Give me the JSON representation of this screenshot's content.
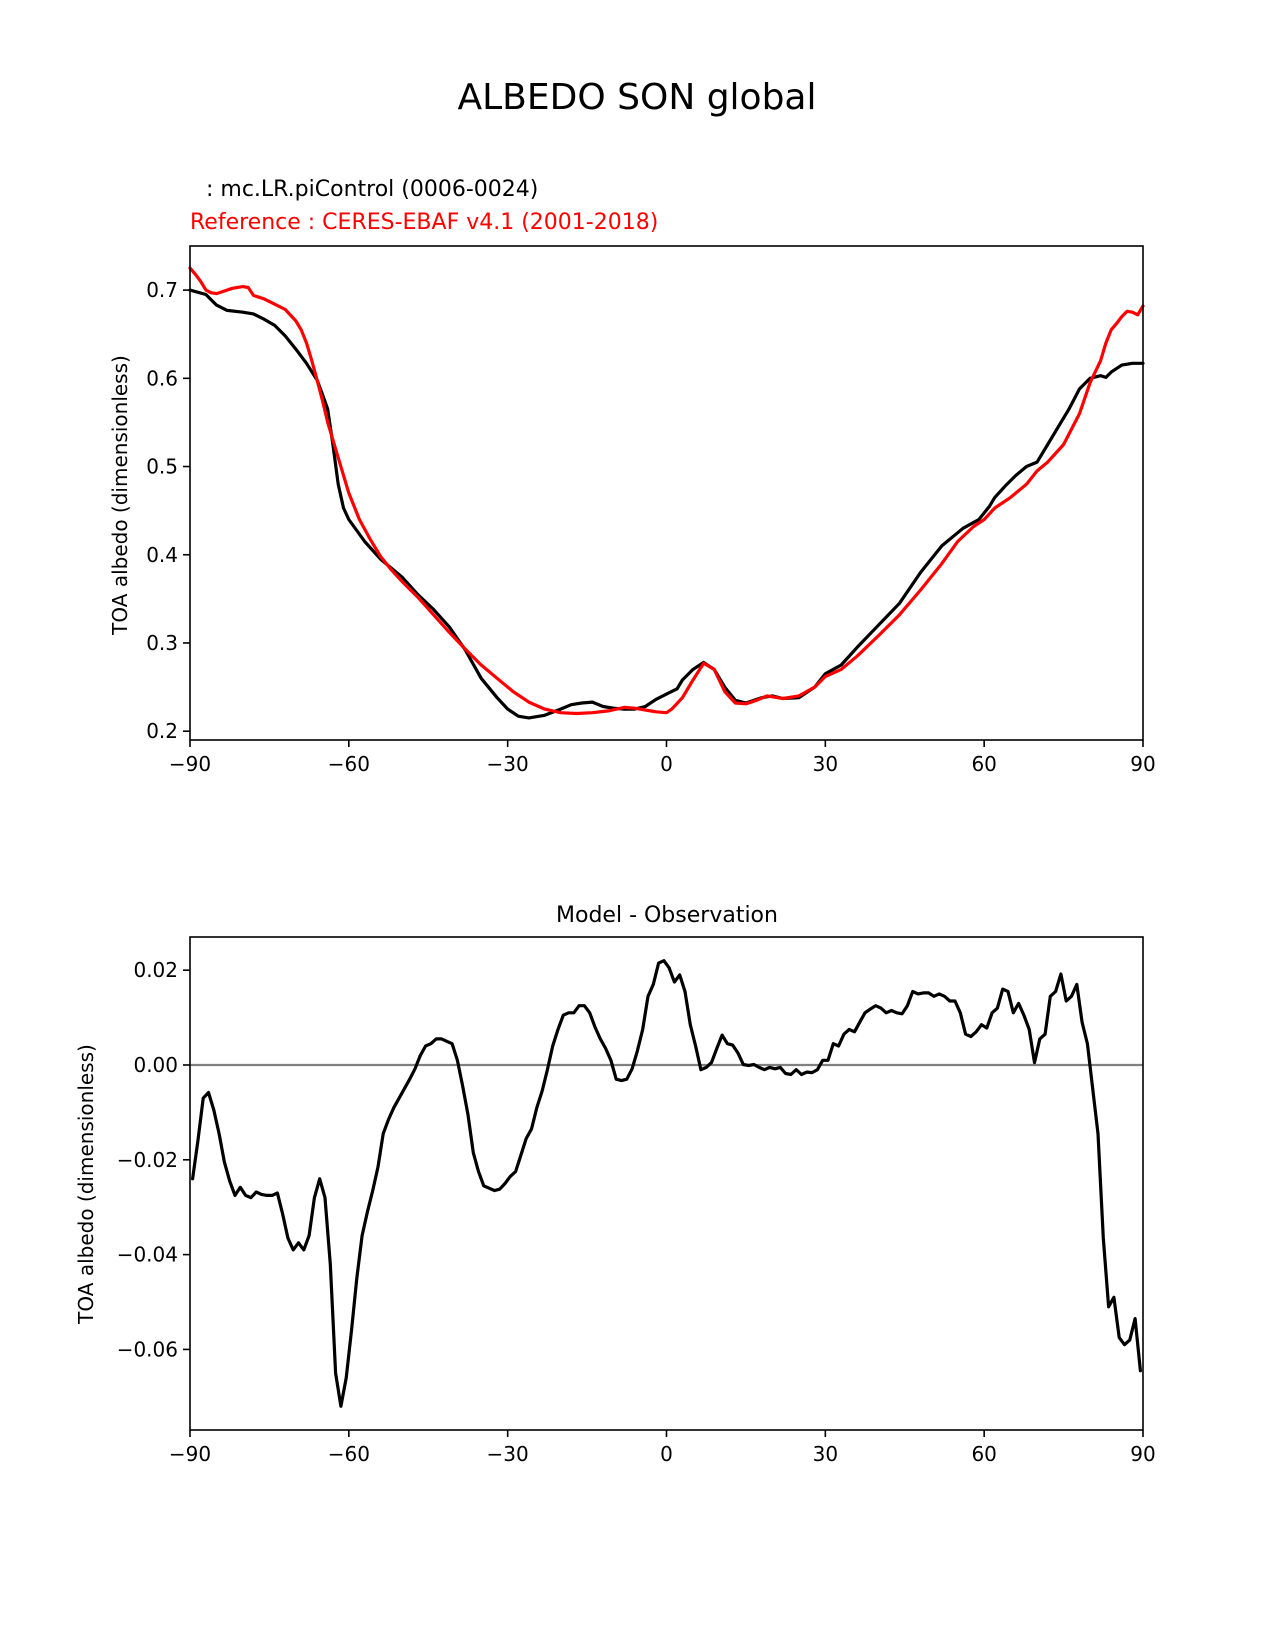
{
  "figure_title": "ALBEDO SON global",
  "colors": {
    "model": "#000000",
    "reference": "#ff0000",
    "zero_line": "#808080"
  },
  "chart_data": [
    {
      "type": "line",
      "legend_model": ": mc.LR.piControl (0006-0024)",
      "legend_reference": "Reference : CERES-EBAF v4.1 (2001-2018)",
      "title": "",
      "xlabel": "",
      "ylabel": "TOA albedo (dimensionless)",
      "xlim": [
        -90,
        90
      ],
      "ylim": [
        0.19,
        0.75
      ],
      "xticks": [
        -90,
        -60,
        -30,
        0,
        30,
        60,
        90
      ],
      "xtick_labels": [
        "−90",
        "−60",
        "−30",
        "0",
        "30",
        "60",
        "90"
      ],
      "yticks": [
        0.2,
        0.3,
        0.4,
        0.5,
        0.6,
        0.7
      ],
      "ytick_labels": [
        "0.2",
        "0.3",
        "0.4",
        "0.5",
        "0.6",
        "0.7"
      ],
      "grid": false,
      "series": [
        {
          "color": "#000000",
          "x": [
            -90,
            -87,
            -85,
            -83,
            -80,
            -78,
            -76,
            -74,
            -72,
            -70,
            -68,
            -66,
            -65,
            -64,
            -63,
            -62,
            -61,
            -60,
            -57,
            -54,
            -50,
            -47,
            -44,
            -41,
            -38,
            -35,
            -32,
            -30,
            -28,
            -26,
            -23,
            -20,
            -18,
            -16,
            -14,
            -12,
            -10,
            -8,
            -6,
            -4,
            -2,
            0,
            2,
            3,
            5,
            7,
            9,
            11,
            13,
            15,
            18,
            20,
            22,
            25,
            28,
            30,
            33,
            36,
            40,
            44,
            48,
            52,
            56,
            59,
            61,
            62,
            64,
            66,
            68,
            70,
            72,
            74,
            76,
            78,
            80,
            82,
            83,
            84,
            86,
            88,
            90
          ],
          "y": [
            0.7,
            0.695,
            0.683,
            0.677,
            0.675,
            0.673,
            0.667,
            0.66,
            0.648,
            0.633,
            0.617,
            0.598,
            0.582,
            0.565,
            0.525,
            0.48,
            0.453,
            0.44,
            0.415,
            0.395,
            0.375,
            0.355,
            0.338,
            0.318,
            0.292,
            0.26,
            0.238,
            0.225,
            0.217,
            0.215,
            0.218,
            0.225,
            0.23,
            0.232,
            0.233,
            0.228,
            0.226,
            0.225,
            0.225,
            0.228,
            0.236,
            0.242,
            0.248,
            0.258,
            0.27,
            0.278,
            0.27,
            0.25,
            0.235,
            0.232,
            0.238,
            0.24,
            0.237,
            0.238,
            0.25,
            0.265,
            0.275,
            0.295,
            0.32,
            0.345,
            0.38,
            0.41,
            0.43,
            0.44,
            0.455,
            0.465,
            0.478,
            0.49,
            0.5,
            0.505,
            0.525,
            0.545,
            0.565,
            0.588,
            0.6,
            0.603,
            0.601,
            0.607,
            0.615,
            0.617,
            0.617
          ]
        },
        {
          "color": "#ff0000",
          "x": [
            -90,
            -89,
            -88,
            -87,
            -86,
            -85,
            -84,
            -82,
            -80,
            -79,
            -78,
            -77,
            -76,
            -74,
            -72,
            -70,
            -69,
            -68,
            -67,
            -66,
            -65,
            -64,
            -62,
            -60,
            -58,
            -56,
            -54,
            -52,
            -50,
            -47,
            -44,
            -41,
            -38,
            -35,
            -32,
            -29,
            -26,
            -23,
            -20,
            -17,
            -14,
            -11,
            -8,
            -6,
            -4,
            -2,
            0,
            1,
            3,
            5,
            7,
            9,
            11,
            13,
            15,
            17,
            19,
            22,
            25,
            28,
            30,
            33,
            36,
            40,
            44,
            48,
            52,
            55,
            58,
            60,
            62,
            65,
            68,
            70,
            72,
            75,
            78,
            80,
            82,
            83,
            84,
            85,
            86,
            87,
            88,
            89,
            90
          ],
          "y": [
            0.725,
            0.718,
            0.71,
            0.7,
            0.697,
            0.696,
            0.698,
            0.702,
            0.704,
            0.703,
            0.694,
            0.692,
            0.69,
            0.684,
            0.678,
            0.665,
            0.655,
            0.64,
            0.62,
            0.598,
            0.575,
            0.55,
            0.51,
            0.47,
            0.44,
            0.418,
            0.398,
            0.383,
            0.37,
            0.352,
            0.332,
            0.312,
            0.293,
            0.275,
            0.26,
            0.245,
            0.233,
            0.225,
            0.221,
            0.22,
            0.221,
            0.223,
            0.227,
            0.226,
            0.224,
            0.222,
            0.221,
            0.225,
            0.238,
            0.258,
            0.277,
            0.27,
            0.245,
            0.232,
            0.231,
            0.235,
            0.24,
            0.237,
            0.24,
            0.25,
            0.262,
            0.27,
            0.285,
            0.308,
            0.332,
            0.36,
            0.39,
            0.415,
            0.432,
            0.44,
            0.453,
            0.465,
            0.48,
            0.495,
            0.505,
            0.525,
            0.56,
            0.595,
            0.62,
            0.64,
            0.655,
            0.662,
            0.67,
            0.676,
            0.675,
            0.672,
            0.682
          ]
        }
      ]
    },
    {
      "type": "line",
      "title": "Model - Observation",
      "xlabel": "",
      "ylabel": "TOA albedo (dimensionless)",
      "xlim": [
        -90,
        90
      ],
      "ylim": [
        -0.077,
        0.027
      ],
      "xticks": [
        -90,
        -60,
        -30,
        0,
        30,
        60,
        90
      ],
      "xtick_labels": [
        "−90",
        "−60",
        "−30",
        "0",
        "30",
        "60",
        "90"
      ],
      "yticks": [
        -0.06,
        -0.04,
        -0.02,
        0.0,
        0.02
      ],
      "ytick_labels": [
        "−0.06",
        "−0.04",
        "−0.02",
        "0.00",
        "0.02"
      ],
      "grid": false,
      "zero_line": 0.0,
      "series": [
        {
          "color": "#000000",
          "x": [
            -89.5,
            -88.5,
            -87.5,
            -86.5,
            -85.5,
            -84.5,
            -83.5,
            -82.5,
            -81.5,
            -80.5,
            -79.5,
            -78.5,
            -77.5,
            -76.5,
            -75.5,
            -74.5,
            -73.5,
            -72.5,
            -71.5,
            -70.5,
            -69.5,
            -68.5,
            -67.5,
            -66.5,
            -65.5,
            -64.5,
            -63.5,
            -62.5,
            -61.5,
            -60.5,
            -59.5,
            -58.5,
            -57.5,
            -56.5,
            -55.5,
            -54.5,
            -53.5,
            -52.5,
            -51.5,
            -50.5,
            -49.5,
            -48.5,
            -47.5,
            -46.5,
            -45.5,
            -44.5,
            -43.5,
            -42.5,
            -41.5,
            -40.5,
            -39.5,
            -38.5,
            -37.5,
            -36.5,
            -35.5,
            -34.5,
            -33.5,
            -32.5,
            -31.5,
            -30.5,
            -29.5,
            -28.5,
            -27.5,
            -26.5,
            -25.5,
            -24.5,
            -23.5,
            -22.5,
            -21.5,
            -20.5,
            -19.5,
            -18.5,
            -17.5,
            -16.5,
            -15.5,
            -14.5,
            -13.5,
            -12.5,
            -11.5,
            -10.5,
            -9.5,
            -8.5,
            -7.5,
            -6.5,
            -5.5,
            -4.5,
            -3.5,
            -2.5,
            -1.5,
            -0.5,
            0.5,
            1.5,
            2.5,
            3.5,
            4.5,
            5.5,
            6.5,
            7.5,
            8.5,
            9.5,
            10.5,
            11.5,
            12.5,
            13.5,
            14.5,
            15.5,
            16.5,
            17.5,
            18.5,
            19.5,
            20.5,
            21.5,
            22.5,
            23.5,
            24.5,
            25.5,
            26.5,
            27.5,
            28.5,
            29.5,
            30.5,
            31.5,
            32.5,
            33.5,
            34.5,
            35.5,
            36.5,
            37.5,
            38.5,
            39.5,
            40.5,
            41.5,
            42.5,
            43.5,
            44.5,
            45.5,
            46.5,
            47.5,
            48.5,
            49.5,
            50.5,
            51.5,
            52.5,
            53.5,
            54.5,
            55.5,
            56.5,
            57.5,
            58.5,
            59.5,
            60.5,
            61.5,
            62.5,
            63.5,
            64.5,
            65.5,
            66.5,
            67.5,
            68.5,
            69.5,
            70.5,
            71.5,
            72.5,
            73.5,
            74.5,
            75.5,
            76.5,
            77.5,
            78.5,
            79.5,
            80.5,
            81.5,
            82.5,
            83.5,
            84.5,
            85.5,
            86.5,
            87.5,
            88.5,
            89.5
          ],
          "y": [
            -0.024,
            -0.016,
            -0.007,
            -0.0058,
            -0.0095,
            -0.0145,
            -0.0205,
            -0.0245,
            -0.0275,
            -0.0258,
            -0.0275,
            -0.028,
            -0.0268,
            -0.0273,
            -0.0275,
            -0.0275,
            -0.027,
            -0.0315,
            -0.0365,
            -0.039,
            -0.0375,
            -0.039,
            -0.036,
            -0.028,
            -0.024,
            -0.028,
            -0.042,
            -0.065,
            -0.072,
            -0.066,
            -0.056,
            -0.045,
            -0.036,
            -0.031,
            -0.0265,
            -0.0215,
            -0.0145,
            -0.0115,
            -0.009,
            -0.007,
            -0.005,
            -0.003,
            -0.0008,
            0.002,
            0.004,
            0.0045,
            0.0055,
            0.0055,
            0.005,
            0.0045,
            0.001,
            -0.0045,
            -0.0105,
            -0.0185,
            -0.0225,
            -0.0255,
            -0.026,
            -0.0265,
            -0.0262,
            -0.025,
            -0.0235,
            -0.0225,
            -0.019,
            -0.0155,
            -0.0135,
            -0.009,
            -0.0055,
            -0.001,
            0.004,
            0.0075,
            0.0105,
            0.011,
            0.011,
            0.0125,
            0.0125,
            0.011,
            0.008,
            0.0055,
            0.0035,
            0.001,
            -0.003,
            -0.0033,
            -0.003,
            -0.0008,
            0.003,
            0.0075,
            0.0145,
            0.017,
            0.0215,
            0.022,
            0.0205,
            0.0175,
            0.019,
            0.0155,
            0.0085,
            0.004,
            -0.001,
            -0.0005,
            0.0005,
            0.0035,
            0.0063,
            0.0045,
            0.0042,
            0.0025,
            0.0001,
            -0.0001,
            0.0001,
            -0.0005,
            -0.001,
            -0.0005,
            -0.0008,
            -0.0005,
            -0.0018,
            -0.002,
            -0.001,
            -0.002,
            -0.0015,
            -0.0016,
            -0.001,
            0.001,
            0.001,
            0.0045,
            0.004,
            0.0065,
            0.0075,
            0.007,
            0.009,
            0.011,
            0.0118,
            0.0125,
            0.012,
            0.011,
            0.0115,
            0.011,
            0.0108,
            0.0125,
            0.0155,
            0.015,
            0.0152,
            0.0152,
            0.0145,
            0.015,
            0.0145,
            0.0135,
            0.0135,
            0.011,
            0.0065,
            0.006,
            0.007,
            0.0085,
            0.0078,
            0.011,
            0.012,
            0.016,
            0.0155,
            0.011,
            0.013,
            0.0105,
            0.0075,
            0.0005,
            0.0055,
            0.0065,
            0.0145,
            0.0155,
            0.0192,
            0.0135,
            0.0145,
            0.017,
            0.009,
            0.0045,
            -0.005,
            -0.0145,
            -0.0365,
            -0.051,
            -0.049,
            -0.0575,
            -0.059,
            -0.058,
            -0.0535,
            -0.0645
          ]
        }
      ]
    }
  ]
}
